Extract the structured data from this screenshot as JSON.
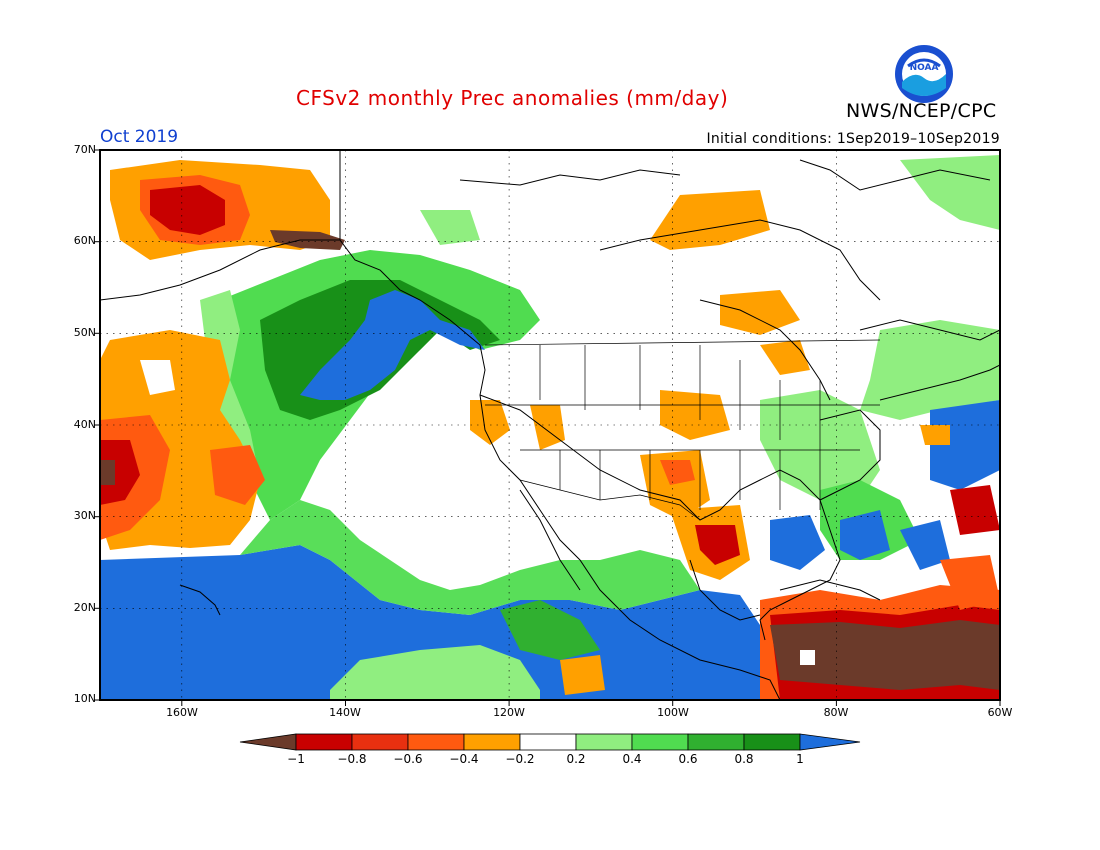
{
  "title": "CFSv2 monthly Prec anomalies (mm/day)",
  "agency": "NWS/NCEP/CPC",
  "logo_text": "NOAA",
  "month": "Oct 2019",
  "initial_conditions": "Initial conditions: 1Sep2019–10Sep2019",
  "lat_ticks": [
    "70N",
    "60N",
    "50N",
    "40N",
    "30N",
    "20N",
    "10N"
  ],
  "lon_ticks": [
    "160W",
    "140W",
    "120W",
    "100W",
    "80W",
    "60W"
  ],
  "colorbar": {
    "labels": [
      "−1",
      "−0.8",
      "−0.6",
      "−0.4",
      "−0.2",
      "0.2",
      "0.4",
      "0.6",
      "0.8",
      "1"
    ],
    "colors": [
      "#6b3a2a",
      "#c80000",
      "#e83010",
      "#ff5a10",
      "#ffa000",
      "#ffffff",
      "#90ee80",
      "#50dc50",
      "#30b030",
      "#189018",
      "#1e6edc"
    ]
  },
  "map_colors": {
    "strong_dry": "#6b3a2a",
    "dry": "#c80000",
    "moderate_dry": "#ff5a10",
    "slight_dry": "#ffa000",
    "slight_wet": "#90ee80",
    "moderate_wet": "#50dc50",
    "wet": "#189018",
    "strong_wet": "#1e6edc"
  }
}
